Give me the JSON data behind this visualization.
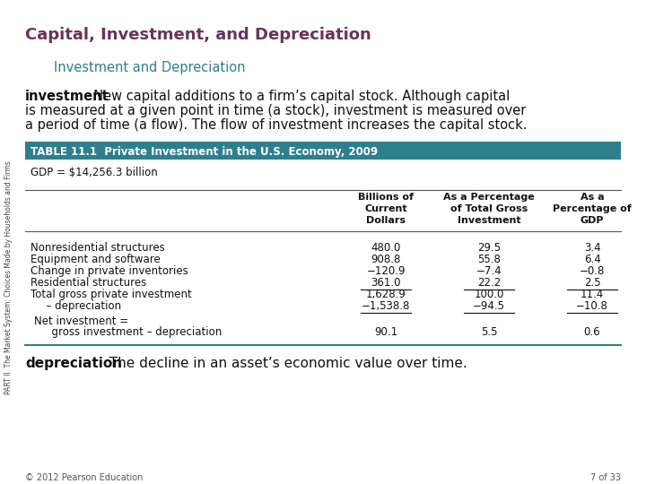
{
  "title": "Capital, Investment, and Depreciation",
  "subtitle": "Investment and Depreciation",
  "body_text_bold": "investment",
  "body_line1_rest": "  New capital additions to a firm’s capital stock. Although capital",
  "body_line2": "is measured at a given point in time (a stock), investment is measured over",
  "body_line3": "a period of time (a flow). The flow of investment increases the capital stock.",
  "table_header": "TABLE 11.1  Private Investment in the U.S. Economy, 2009",
  "table_header_bg": "#2e7f8c",
  "table_header_color": "#ffffff",
  "gdp_note": "GDP = $14,256.3 billion",
  "col_headers": [
    "Billions of\nCurrent\nDollars",
    "As a Percentage\nof Total Gross\nInvestment",
    "As a\nPercentage of\nGDP"
  ],
  "row_labels": [
    "Nonresidential structures",
    "Equipment and software",
    "Change in private inventories",
    "Residential structures",
    "Total gross private investment",
    "  – depreciation",
    "Net investment =",
    "  gross investment – depreciation"
  ],
  "col1": [
    "480.0",
    "908.8",
    "−120.9",
    "361.0",
    "1,628.9",
    "−1,538.8",
    "",
    "90.1"
  ],
  "col2": [
    "29.5",
    "55.8",
    "−7.4",
    "22.2",
    "100.0",
    "−94.5",
    "",
    "5.5"
  ],
  "col3": [
    "3.4",
    "6.4",
    "−0.8",
    "2.5",
    "11.4",
    "−10.8",
    "",
    "0.6"
  ],
  "underline_rows": [
    3,
    5
  ],
  "bottom_bold": "depreciation",
  "bottom_text": "  The decline in an asset’s economic value over time.",
  "sidebar_text": "PART II  The Market System: Choices Made by Households and Firms",
  "footer_left": "© 2012 Pearson Education",
  "footer_right": "7 of 33",
  "title_color": "#6b3358",
  "subtitle_color": "#2e7f8c",
  "bg_color": "#ffffff",
  "line_color": "#2e7f8c"
}
